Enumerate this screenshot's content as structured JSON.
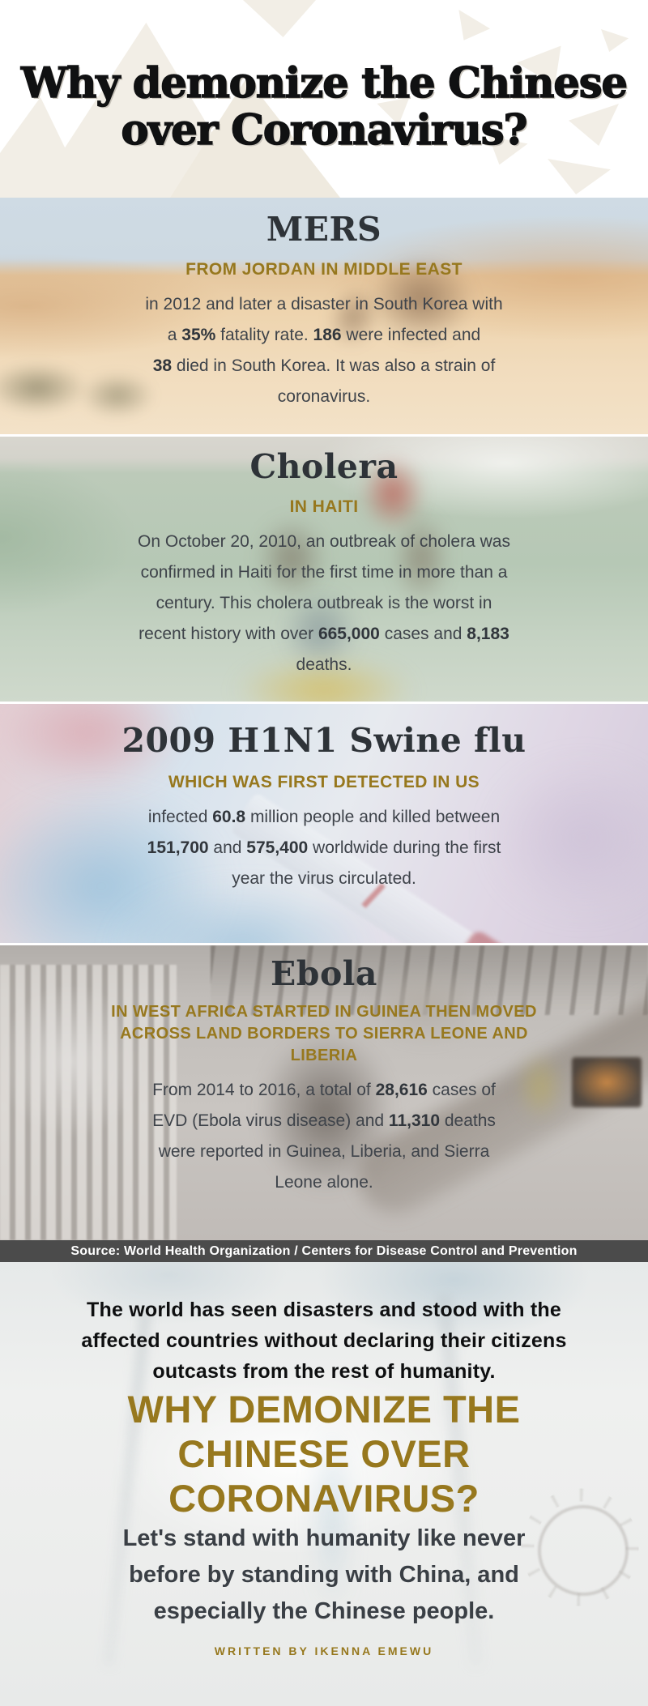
{
  "header": {
    "title": "Why demonize the Chinese\nover Coronavirus?"
  },
  "sections": [
    {
      "id": "mers",
      "heading": "MERS",
      "subheading": "FROM JORDAN IN MIDDLE EAST",
      "body": [
        {
          "t": "in 2012 and later a disaster in South Korea with\na "
        },
        {
          "t": "35%",
          "b": true
        },
        {
          "t": " fatality rate. "
        },
        {
          "t": "186",
          "b": true
        },
        {
          "t": " were infected and\n"
        },
        {
          "t": "38",
          "b": true
        },
        {
          "t": " died in South Korea. It was also a strain of\ncoronavirus."
        }
      ]
    },
    {
      "id": "cholera",
      "heading": "Cholera",
      "subheading": "IN HAITI",
      "body": [
        {
          "t": "On October 20, 2010, an outbreak of cholera was\nconfirmed in Haiti for the first time in more than a\ncentury. This cholera outbreak is the worst in\nrecent history with over "
        },
        {
          "t": "665,000",
          "b": true
        },
        {
          "t": " cases and "
        },
        {
          "t": "8,183",
          "b": true
        },
        {
          "t": "\ndeaths."
        }
      ]
    },
    {
      "id": "h1n1",
      "heading": "2009 H1N1 Swine flu",
      "subheading": "WHICH WAS FIRST DETECTED IN US",
      "body": [
        {
          "t": "infected "
        },
        {
          "t": "60.8",
          "b": true
        },
        {
          "t": " million people and killed between\n"
        },
        {
          "t": "151,700",
          "b": true
        },
        {
          "t": " and "
        },
        {
          "t": "575,400",
          "b": true
        },
        {
          "t": " worldwide during the first\nyear the virus circulated."
        }
      ]
    },
    {
      "id": "ebola",
      "heading": "Ebola",
      "subheading": "IN WEST AFRICA STARTED IN GUINEA THEN MOVED\nACROSS LAND BORDERS TO SIERRA LEONE AND\nLIBERIA",
      "body": [
        {
          "t": "From 2014 to 2016, a total of "
        },
        {
          "t": "28,616",
          "b": true
        },
        {
          "t": " cases of\nEVD (Ebola virus disease) and "
        },
        {
          "t": "11,310",
          "b": true
        },
        {
          "t": " deaths\nwere reported in Guinea, Liberia, and Sierra\nLeone alone."
        }
      ]
    }
  ],
  "source_bar": {
    "text": "Source: World Health Organization / Centers for Disease Control and Prevention"
  },
  "outro": {
    "paragraph1": "The world has seen disasters and stood with the\naffected countries without declaring their citizens\noutcasts from the rest of humanity.",
    "headline": "WHY DEMONIZE THE\nCHINESE OVER\nCORONAVIRUS?",
    "paragraph2": "Let's stand with humanity like never\nbefore by standing with China, and\nespecially the Chinese people.",
    "credit": "WRITTEN BY IKENNA EMEWU"
  },
  "colors": {
    "gold": "#97781e",
    "heading_dark": "#2e3338",
    "body_dark": "#3e434a",
    "source_bar_bg": "#4b4b4b",
    "near_black": "#0e0f10"
  }
}
